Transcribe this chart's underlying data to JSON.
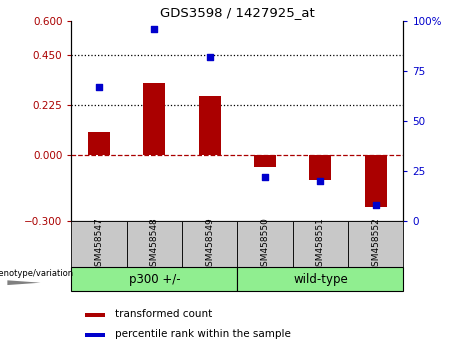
{
  "title": "GDS3598 / 1427925_at",
  "categories": [
    "GSM458547",
    "GSM458548",
    "GSM458549",
    "GSM458550",
    "GSM458551",
    "GSM458552"
  ],
  "red_values": [
    0.1,
    0.32,
    0.265,
    -0.055,
    -0.115,
    -0.235
  ],
  "blue_pct": [
    67,
    96,
    82,
    22,
    20,
    8
  ],
  "ylim_left": [
    -0.3,
    0.6
  ],
  "ylim_right": [
    0,
    100
  ],
  "yticks_left": [
    -0.3,
    0.0,
    0.225,
    0.45,
    0.6
  ],
  "yticks_right": [
    0,
    25,
    50,
    75,
    100
  ],
  "hlines": [
    0.225,
    0.45
  ],
  "red_color": "#AA0000",
  "blue_color": "#0000CC",
  "bar_width": 0.4,
  "legend_labels": [
    "transformed count",
    "percentile rank within the sample"
  ],
  "genotype_label": "genotype/variation",
  "group1_label": "p300 +/-",
  "group2_label": "wild-type",
  "tick_bg_color": "#C8C8C8",
  "group_color": "#90EE90",
  "group_border_color": "#000000"
}
